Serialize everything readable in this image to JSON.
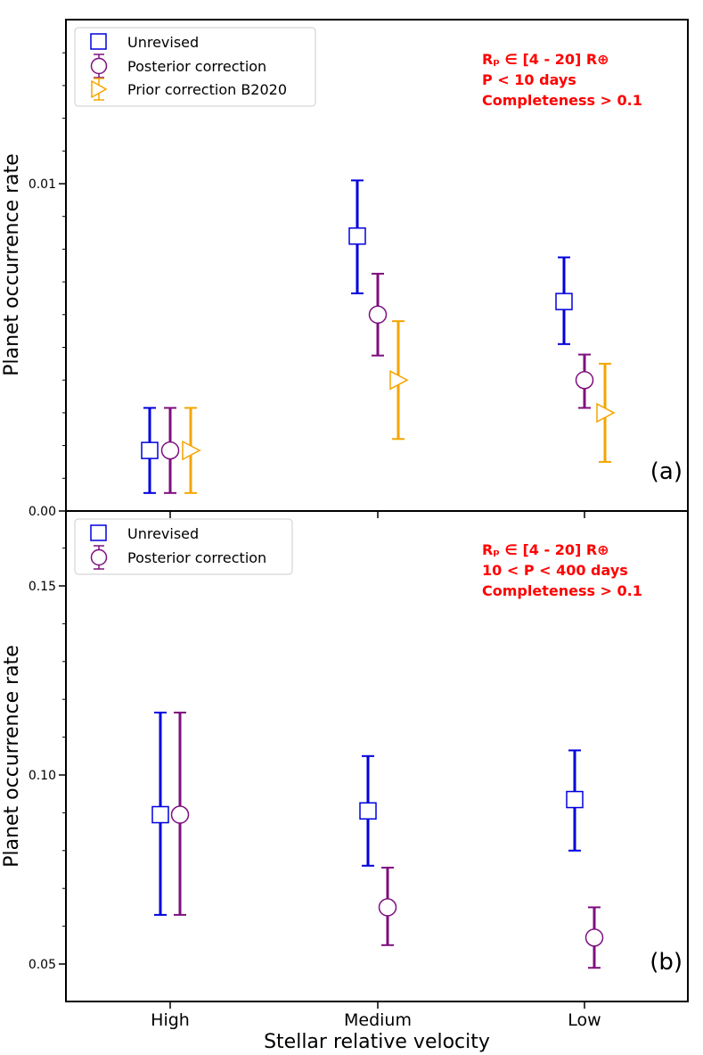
{
  "chart_data": {
    "type": "scatter",
    "xlabel": "Stellar relative velocity",
    "categories": [
      "High",
      "Medium",
      "Low"
    ],
    "colors": {
      "Unrevised": "#0000dd",
      "Posterior correction": "#7f0f7e",
      "Prior correction B2020": "#f5a500"
    },
    "panels": [
      {
        "label": "(a)",
        "ylabel": "Planet occurrence rate",
        "ylim": [
          0.0,
          0.0155
        ],
        "ytick_labels": [
          "0.00",
          "0.01"
        ],
        "annotation": [
          "Rₚ ∈ [4 - 20] R⊕",
          "P < 10 days",
          "Completeness > 0.1"
        ],
        "series": [
          {
            "name": "Unrevised",
            "marker": "square",
            "values": [
              0.00185,
              0.0084,
              0.0064
            ],
            "err_low": [
              0.0013,
              0.00175,
              0.0013
            ],
            "err_high": [
              0.0013,
              0.0017,
              0.00135
            ]
          },
          {
            "name": "Posterior correction",
            "marker": "circle",
            "values": [
              0.00185,
              0.006,
              0.004
            ],
            "err_low": [
              0.0013,
              0.00125,
              0.00085
            ],
            "err_high": [
              0.0013,
              0.00125,
              0.00078
            ]
          },
          {
            "name": "Prior correction B2020",
            "marker": "triangle-right",
            "values": [
              0.00185,
              0.004,
              0.003
            ],
            "err_low": [
              0.0013,
              0.0018,
              0.0015
            ],
            "err_high": [
              0.0013,
              0.0018,
              0.0015
            ]
          }
        ]
      },
      {
        "label": "(b)",
        "ylabel": "Planet occurrence rate",
        "ylim": [
          0.045,
          0.172
        ],
        "ytick_labels": [
          "0.05",
          "0.10",
          "0.15"
        ],
        "annotation": [
          "Rₚ ∈ [4 - 20] R⊕",
          "10 < P < 400 days",
          "Completeness > 0.1"
        ],
        "series": [
          {
            "name": "Unrevised",
            "marker": "square",
            "values": [
              0.0895,
              0.0905,
              0.0935
            ],
            "err_low": [
              0.0265,
              0.0145,
              0.0135
            ],
            "err_high": [
              0.027,
              0.0145,
              0.013
            ]
          },
          {
            "name": "Posterior correction",
            "marker": "circle",
            "values": [
              0.0895,
              0.065,
              0.057
            ],
            "err_low": [
              0.0265,
              0.01,
              0.008
            ],
            "err_high": [
              0.027,
              0.0105,
              0.008
            ]
          }
        ]
      }
    ]
  }
}
